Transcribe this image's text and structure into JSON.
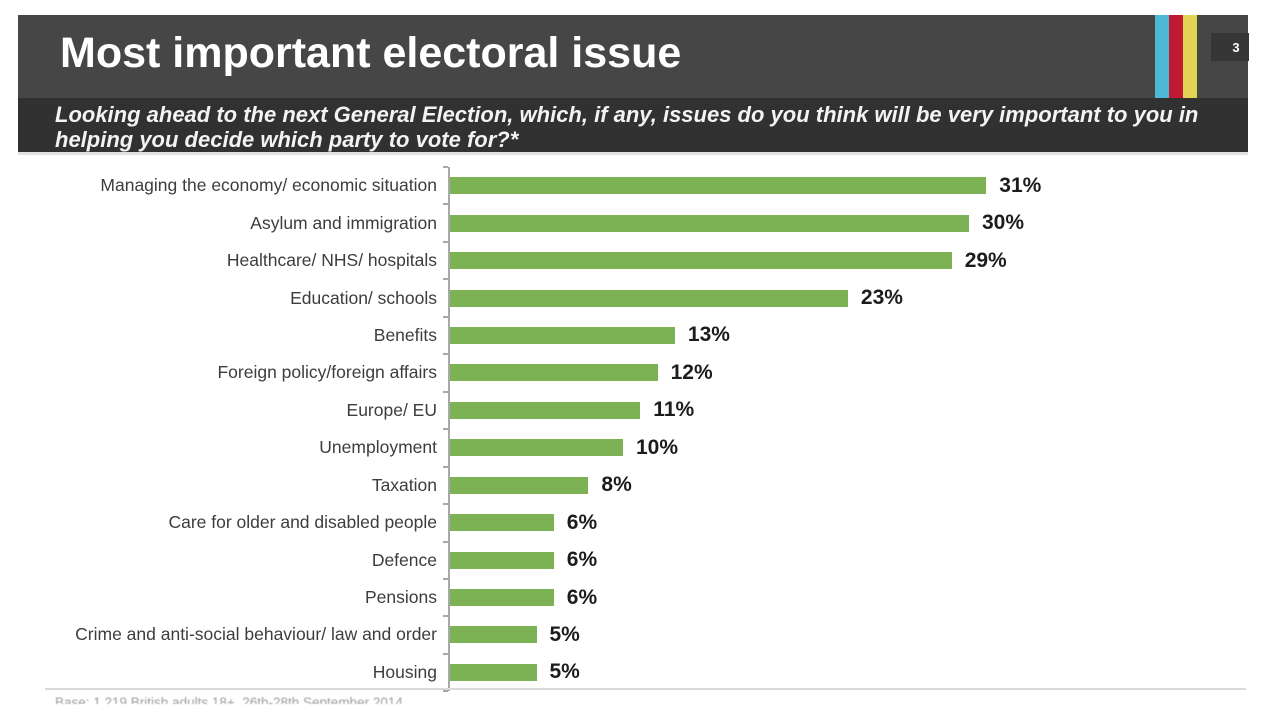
{
  "slide": {
    "title": "Most important electoral issue",
    "page_number": "3",
    "subtitle_line1": "Looking ahead to the next General Election, which, if any, issues do you think will be very important to you in",
    "subtitle_line2": "helping you decide which party to vote for?*",
    "footnote": "Base: 1,219 British adults 18+, 26th-28th September 2014",
    "colors": {
      "header_bg": "#464646",
      "subtitle_bg": "#313131",
      "bar_green": "#7cb254",
      "stripe_blue": "#4cb9d5",
      "stripe_red": "#c01933",
      "stripe_yellow": "#e2d355"
    }
  },
  "chart_data": {
    "type": "bar",
    "orientation": "horizontal",
    "title": "Most important electoral issue",
    "unit": "%",
    "xlim": [
      0,
      46
    ],
    "grid": false,
    "legend": false,
    "categories": [
      "Managing the economy/ economic situation",
      "Asylum and immigration",
      "Healthcare/ NHS/ hospitals",
      "Education/ schools",
      "Benefits",
      "Foreign policy/foreign affairs",
      "Europe/ EU",
      "Unemployment",
      "Taxation",
      "Care for older and disabled people",
      "Defence",
      "Pensions",
      "Crime and anti-social behaviour/ law and order",
      "Housing"
    ],
    "values": [
      31,
      30,
      29,
      23,
      13,
      12,
      11,
      10,
      8,
      6,
      6,
      6,
      5,
      5
    ],
    "value_labels": [
      "31%",
      "30%",
      "29%",
      "23%",
      "13%",
      "12%",
      "11%",
      "10%",
      "8%",
      "6%",
      "6%",
      "6%",
      "5%",
      "5%"
    ]
  }
}
